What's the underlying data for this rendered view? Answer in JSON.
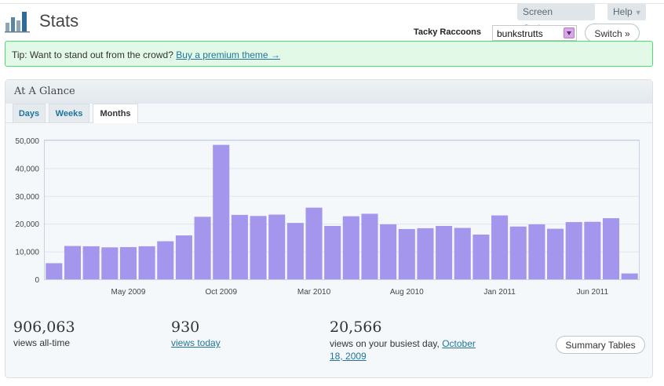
{
  "header": {
    "title": "Stats",
    "screen_options_label": "Screen Options",
    "help_label": "Help",
    "blog_name": "Tacky Raccoons",
    "blog_select_value": "bunkstrutts",
    "switch_label": "Switch »"
  },
  "tip": {
    "text": "Tip: Want to stand out from the crowd?",
    "link_label": "Buy a premium theme →"
  },
  "glance": {
    "title": "At A Glance",
    "tabs": [
      {
        "label": "Days",
        "active": false
      },
      {
        "label": "Weeks",
        "active": false
      },
      {
        "label": "Months",
        "active": true
      }
    ]
  },
  "chart_data": {
    "type": "bar",
    "categories": [
      "Jan 2009",
      "Feb 2009",
      "Mar 2009",
      "Apr 2009",
      "May 2009",
      "Jun 2009",
      "Jul 2009",
      "Aug 2009",
      "Sep 2009",
      "Oct 2009",
      "Nov 2009",
      "Dec 2009",
      "Jan 2010",
      "Feb 2010",
      "Mar 2010",
      "Apr 2010",
      "May 2010",
      "Jun 2010",
      "Jul 2010",
      "Aug 2010",
      "Sep 2010",
      "Oct 2010",
      "Nov 2010",
      "Dec 2010",
      "Jan 2011",
      "Feb 2011",
      "Mar 2011",
      "Apr 2011",
      "May 2011",
      "Jun 2011",
      "Jul 2011",
      "Aug 2011"
    ],
    "values": [
      5800,
      12000,
      11900,
      11500,
      11600,
      11900,
      13700,
      15800,
      22500,
      48400,
      23200,
      22800,
      23300,
      20300,
      25800,
      19200,
      22700,
      23600,
      19800,
      18100,
      18400,
      19200,
      18500,
      16100,
      23000,
      19000,
      19800,
      18200,
      20600,
      20700,
      22000,
      2100
    ],
    "x_tick_labels": [
      "May 2009",
      "Oct 2009",
      "Mar 2010",
      "Aug 2010",
      "Jan 2011",
      "Jun 2011"
    ],
    "y_tick_labels": [
      "0",
      "10,000",
      "20,000",
      "30,000",
      "40,000",
      "50,000"
    ],
    "ylim": [
      0,
      50000
    ],
    "bar_color": "#a496ec",
    "grid": true
  },
  "summary": {
    "all_time_value": "906,063",
    "all_time_label": "views all-time",
    "today_value": "930",
    "today_label": "views today",
    "busiest_value": "20,566",
    "busiest_label": "views on your busiest day,",
    "busiest_date": "October 18, 2009",
    "summary_tables_label": "Summary Tables"
  }
}
